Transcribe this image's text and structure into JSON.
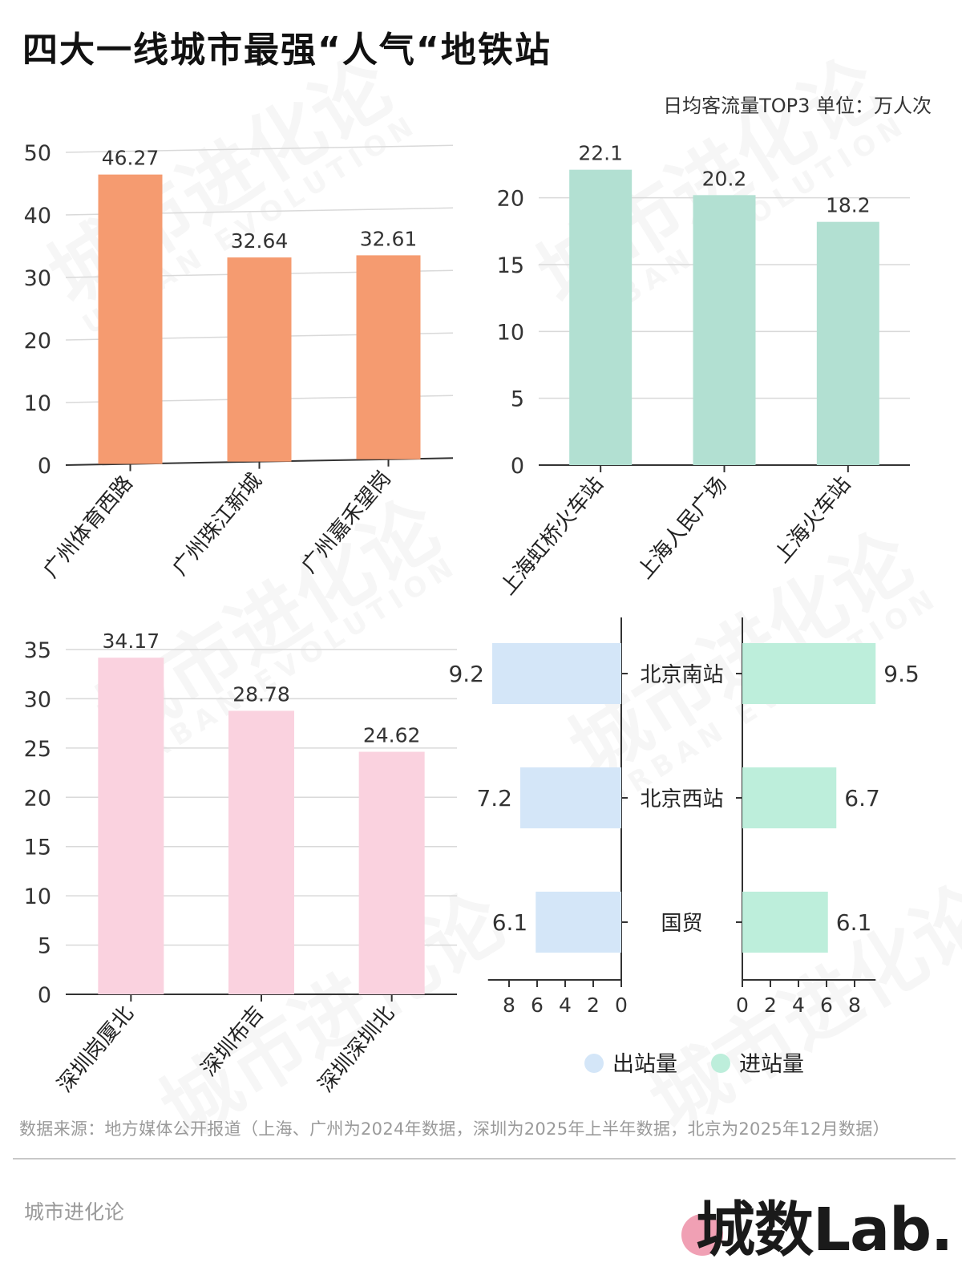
{
  "title": "四大一线城市最强“人气“地铁站",
  "subtitle": "日均客流量TOP3 单位：万人次",
  "watermark": {
    "main": "城市进化论",
    "sub": "URBAN EVOLUTION"
  },
  "colors": {
    "guangzhou": "#f59b70",
    "shanghai": "#b2e0d2",
    "shenzhen": "#fad2df",
    "beijing_out": "#d4e6f8",
    "beijing_in": "#bdeedb"
  },
  "chart_data": [
    {
      "type": "bar",
      "city": "广州",
      "categories": [
        "广州体育西路",
        "广州珠江新城",
        "广州嘉禾望岗"
      ],
      "values": [
        46.27,
        32.64,
        32.61
      ],
      "value_labels": [
        "46.27",
        "32.64",
        "32.61"
      ],
      "ylim": [
        0,
        50
      ],
      "yticks": [
        0,
        10,
        20,
        30,
        40,
        50
      ],
      "grid": true
    },
    {
      "type": "bar",
      "city": "上海",
      "categories": [
        "上海虹桥火车站",
        "上海人民广场",
        "上海火车站"
      ],
      "values": [
        22.1,
        20.2,
        18.2
      ],
      "value_labels": [
        "22.1",
        "20.2",
        "18.2"
      ],
      "ylim": [
        0,
        22.5
      ],
      "yticks": [
        0,
        5,
        10,
        15,
        20
      ],
      "grid": true
    },
    {
      "type": "bar",
      "city": "深圳",
      "categories": [
        "深圳岗厦北",
        "深圳布吉",
        "深圳深圳北"
      ],
      "values": [
        34.17,
        28.78,
        24.62
      ],
      "value_labels": [
        "34.17",
        "28.78",
        "24.62"
      ],
      "ylim": [
        0,
        35
      ],
      "yticks": [
        0,
        5,
        10,
        15,
        20,
        25,
        30,
        35
      ],
      "grid": true
    },
    {
      "type": "bar",
      "orientation": "horizontal-butterfly",
      "city": "北京",
      "categories": [
        "北京南站",
        "北京西站",
        "国贸"
      ],
      "series": [
        {
          "name": "出站量",
          "values": [
            9.2,
            7.2,
            6.1
          ],
          "value_labels": [
            "9.2",
            "7.2",
            "6.1"
          ]
        },
        {
          "name": "进站量",
          "values": [
            9.5,
            6.7,
            6.1
          ],
          "value_labels": [
            "9.5",
            "6.7",
            "6.1"
          ]
        }
      ],
      "xlim": [
        0,
        9.5
      ],
      "xticks": [
        0,
        2,
        4,
        6,
        8
      ],
      "legend": "bottom"
    }
  ],
  "source": "数据来源：地方媒体公开报道（上海、广州为2024年数据，深圳为2025年上半年数据，北京为2025年12月数据）",
  "footer": {
    "brand": "城市进化论",
    "logo": "城数Lab."
  }
}
